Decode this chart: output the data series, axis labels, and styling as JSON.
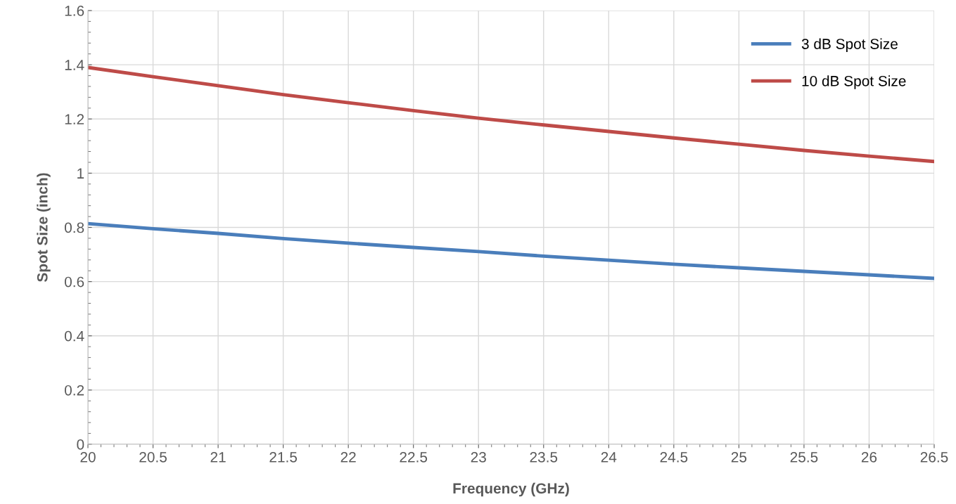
{
  "chart_data": {
    "type": "line",
    "xlabel": "Frequency (GHz)",
    "ylabel": "Spot Size (inch)",
    "x": [
      20,
      20.5,
      21,
      21.5,
      22,
      22.5,
      23,
      23.5,
      24,
      24.5,
      25,
      25.5,
      26,
      26.5
    ],
    "series": [
      {
        "name": "3 dB Spot Size",
        "color": "#4a7ebb",
        "values": [
          0.814,
          0.795,
          0.778,
          0.759,
          0.742,
          0.726,
          0.711,
          0.694,
          0.679,
          0.664,
          0.651,
          0.638,
          0.625,
          0.612
        ]
      },
      {
        "name": "10 dB Spot Size",
        "color": "#be4b48",
        "values": [
          1.39,
          1.356,
          1.323,
          1.29,
          1.26,
          1.231,
          1.203,
          1.178,
          1.154,
          1.13,
          1.107,
          1.084,
          1.063,
          1.043
        ]
      }
    ],
    "xlim": [
      20,
      26.5
    ],
    "xticks": [
      20,
      20.5,
      21,
      21.5,
      22,
      22.5,
      23,
      23.5,
      24,
      24.5,
      25,
      25.5,
      26,
      26.5
    ],
    "ylim": [
      0,
      1.6
    ],
    "yticks": [
      0,
      0.2,
      0.4,
      0.6,
      0.8,
      1,
      1.2,
      1.4,
      1.6
    ],
    "grid": true,
    "legend": "top right",
    "marker": "none",
    "line_style": "solid"
  }
}
